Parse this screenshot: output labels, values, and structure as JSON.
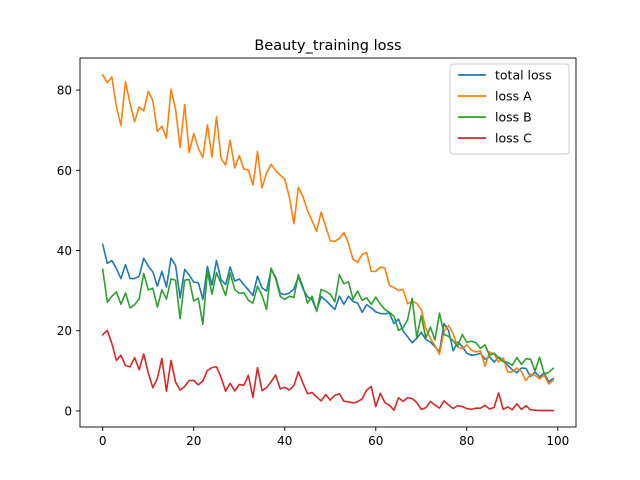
{
  "chart_data": {
    "type": "line",
    "title": "Beauty_training loss",
    "xlabel": "",
    "ylabel": "",
    "xlim": [
      -5,
      104
    ],
    "ylim": [
      -4,
      88
    ],
    "xticks": [
      0,
      20,
      40,
      60,
      80,
      100
    ],
    "yticks": [
      0,
      20,
      40,
      60,
      80
    ],
    "grid": false,
    "legend_position": "top-right",
    "x": [
      0,
      1,
      2,
      3,
      4,
      5,
      6,
      7,
      8,
      9,
      10,
      11,
      12,
      13,
      14,
      15,
      16,
      17,
      18,
      19,
      20,
      21,
      22,
      23,
      24,
      25,
      26,
      27,
      28,
      29,
      30,
      31,
      32,
      33,
      34,
      35,
      36,
      37,
      38,
      39,
      40,
      41,
      42,
      43,
      44,
      45,
      46,
      47,
      48,
      49,
      50,
      51,
      52,
      53,
      54,
      55,
      56,
      57,
      58,
      59,
      60,
      61,
      62,
      63,
      64,
      65,
      66,
      67,
      68,
      69,
      70,
      71,
      72,
      73,
      74,
      75,
      76,
      77,
      78,
      79,
      80,
      81,
      82,
      83,
      84,
      85,
      86,
      87,
      88,
      89,
      90,
      91,
      92,
      93,
      94,
      95,
      96,
      97,
      98,
      99
    ],
    "series": [
      {
        "name": "total loss",
        "color": "#1f77b4",
        "values": [
          41.5,
          36.8,
          37.5,
          35.5,
          33.0,
          36.5,
          33.0,
          33.0,
          33.6,
          38.1,
          36.1,
          34.7,
          31.1,
          34.8,
          30.9,
          38.1,
          36.3,
          28.2,
          35.3,
          33.9,
          32.1,
          32.0,
          27.8,
          36.0,
          31.4,
          37.5,
          32.7,
          31.5,
          35.9,
          32.4,
          32.9,
          31.5,
          30.2,
          28.8,
          33.6,
          30.7,
          29.9,
          35.2,
          33.4,
          29.3,
          29.0,
          29.4,
          30.4,
          33.5,
          30.4,
          28.5,
          27.7,
          25.1,
          28.5,
          27.6,
          26.4,
          25.3,
          28.6,
          26.6,
          28.6,
          27.3,
          26.9,
          24.6,
          26.5,
          25.7,
          24.7,
          24.3,
          24.2,
          24.4,
          21.8,
          22.9,
          19.9,
          18.5,
          17.0,
          18.1,
          19.6,
          17.8,
          17.2,
          16.0,
          14.8,
          21.8,
          20.0,
          15.0,
          17.2,
          16.1,
          14.4,
          13.9,
          14.0,
          14.4,
          12.9,
          13.5,
          12.2,
          13.4,
          12.7,
          11.4,
          10.3,
          9.5,
          10.7,
          10.6,
          8.6,
          9.7,
          8.5,
          9.5,
          7.3,
          8.1
        ]
      },
      {
        "name": "loss A",
        "color": "#ff7f0e",
        "values": [
          83.8,
          81.9,
          83.3,
          75.8,
          71.2,
          82.1,
          76.6,
          72.1,
          75.8,
          74.8,
          79.7,
          77.4,
          69.7,
          71.0,
          68.0,
          80.2,
          75.2,
          65.7,
          76.4,
          64.4,
          69.2,
          65.5,
          63.2,
          71.3,
          63.3,
          73.4,
          63.0,
          61.3,
          67.5,
          60.6,
          63.7,
          60.3,
          60.1,
          56.3,
          64.7,
          55.6,
          59.4,
          61.5,
          59.9,
          58.8,
          57.8,
          53.4,
          46.7,
          55.8,
          53.4,
          50.0,
          47.4,
          44.8,
          49.6,
          46.0,
          42.4,
          42.3,
          43.0,
          44.5,
          41.8,
          37.8,
          37.1,
          39.0,
          39.5,
          34.8,
          34.8,
          35.9,
          35.6,
          31.3,
          30.8,
          30.0,
          30.3,
          26.7,
          27.4,
          26.8,
          25.3,
          20.6,
          18.1,
          16.3,
          14.1,
          19.9,
          21.3,
          19.2,
          16.0,
          15.5,
          16.5,
          15.2,
          14.7,
          15.0,
          11.1,
          14.7,
          14.2,
          12.2,
          13.2,
          9.7,
          9.8,
          10.7,
          9.8,
          7.6,
          9.1,
          8.9,
          8.0,
          9.0,
          6.7,
          7.7
        ]
      },
      {
        "name": "loss B",
        "color": "#2ca02c",
        "values": [
          35.3,
          27.1,
          28.6,
          29.7,
          26.6,
          29.4,
          25.7,
          26.5,
          27.9,
          34.3,
          30.2,
          30.6,
          25.9,
          30.2,
          27.9,
          32.9,
          32.6,
          23.0,
          32.6,
          32.8,
          27.4,
          28.1,
          21.6,
          34.8,
          29.1,
          34.5,
          31.8,
          28.8,
          34.4,
          30.3,
          29.3,
          29.5,
          27.6,
          26.9,
          31.1,
          28.8,
          25.3,
          35.6,
          33.0,
          28.6,
          27.8,
          28.6,
          28.3,
          34.0,
          30.9,
          26.9,
          28.6,
          24.8,
          30.3,
          29.8,
          29.1,
          27.2,
          34.0,
          31.7,
          32.2,
          27.9,
          29.9,
          27.6,
          28.2,
          26.6,
          28.4,
          26.6,
          25.3,
          24.6,
          23.6,
          20.1,
          20.7,
          22.8,
          28.1,
          18.4,
          23.8,
          18.2,
          20.9,
          17.7,
          24.4,
          19.1,
          18.6,
          17.5,
          16.1,
          19.1,
          17.1,
          17.4,
          17.0,
          15.6,
          16.5,
          13.9,
          14.4,
          13.2,
          12.3,
          12.1,
          11.4,
          13.3,
          11.6,
          13.0,
          12.9,
          10.0,
          13.4,
          9.3,
          9.6,
          10.6
        ]
      },
      {
        "name": "loss C",
        "color": "#d62728",
        "values": [
          19.0,
          20.1,
          16.8,
          12.6,
          13.9,
          11.3,
          11.0,
          13.3,
          10.3,
          14.2,
          9.5,
          5.8,
          8.1,
          13.1,
          4.9,
          12.6,
          7.2,
          5.2,
          6.1,
          7.6,
          7.6,
          6.5,
          7.5,
          10.1,
          10.8,
          11.0,
          8.4,
          4.9,
          6.9,
          5.0,
          6.6,
          6.4,
          8.9,
          3.4,
          10.8,
          5.1,
          5.8,
          7.3,
          9.0,
          5.5,
          5.9,
          5.2,
          6.3,
          9.8,
          6.9,
          4.3,
          4.6,
          3.5,
          2.5,
          4.1,
          2.7,
          3.9,
          4.3,
          2.4,
          2.3,
          2.0,
          2.3,
          3.0,
          5.2,
          6.1,
          1.1,
          4.4,
          2.1,
          1.4,
          0.2,
          3.3,
          2.4,
          3.3,
          3.1,
          2.1,
          0.4,
          0.8,
          2.4,
          1.5,
          0.7,
          2.5,
          1.5,
          0.6,
          1.3,
          1.1,
          0.6,
          0.4,
          0.7,
          0.7,
          1.4,
          0.5,
          0.9,
          4.5,
          0.4,
          1.0,
          0.3,
          1.8,
          0.4,
          1.3,
          0.3,
          0.2,
          0.1,
          0.1,
          0.1,
          0.1
        ]
      }
    ]
  }
}
